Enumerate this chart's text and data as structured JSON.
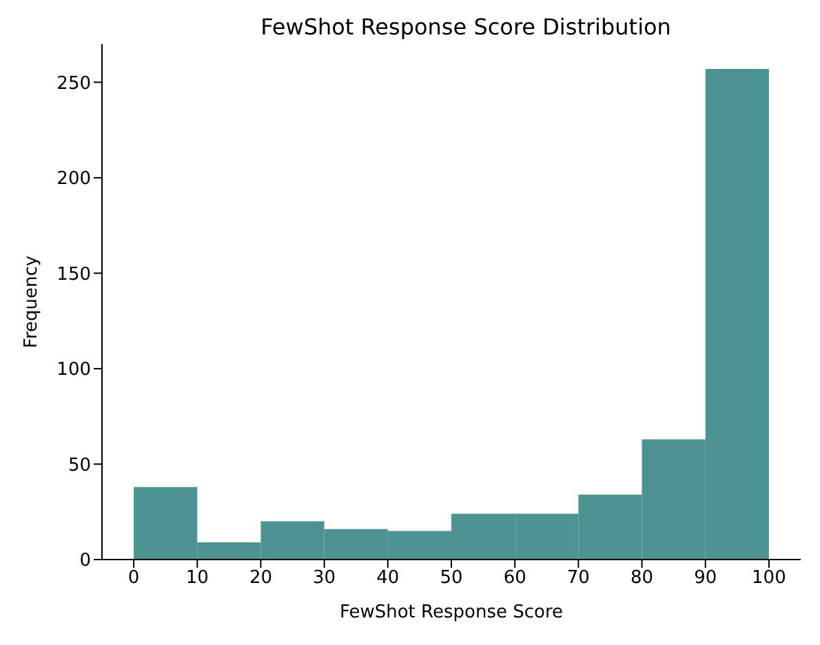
{
  "chart_data": {
    "type": "histogram",
    "title": "FewShot Response Score Distribution",
    "xlabel": "FewShot Response Score",
    "ylabel": "Frequency",
    "bins": [
      0,
      10,
      20,
      30,
      40,
      50,
      60,
      70,
      80,
      90,
      100
    ],
    "values": [
      38,
      9,
      20,
      16,
      15,
      24,
      24,
      34,
      63,
      257
    ],
    "color": "#4e9393",
    "xlim": [
      -5,
      105
    ],
    "xticks": [
      0,
      10,
      20,
      30,
      40,
      50,
      60,
      70,
      80,
      90,
      100
    ],
    "ylim": [
      0,
      270
    ],
    "yticks": [
      0,
      50,
      100,
      150,
      200,
      250
    ],
    "grid": false
  }
}
